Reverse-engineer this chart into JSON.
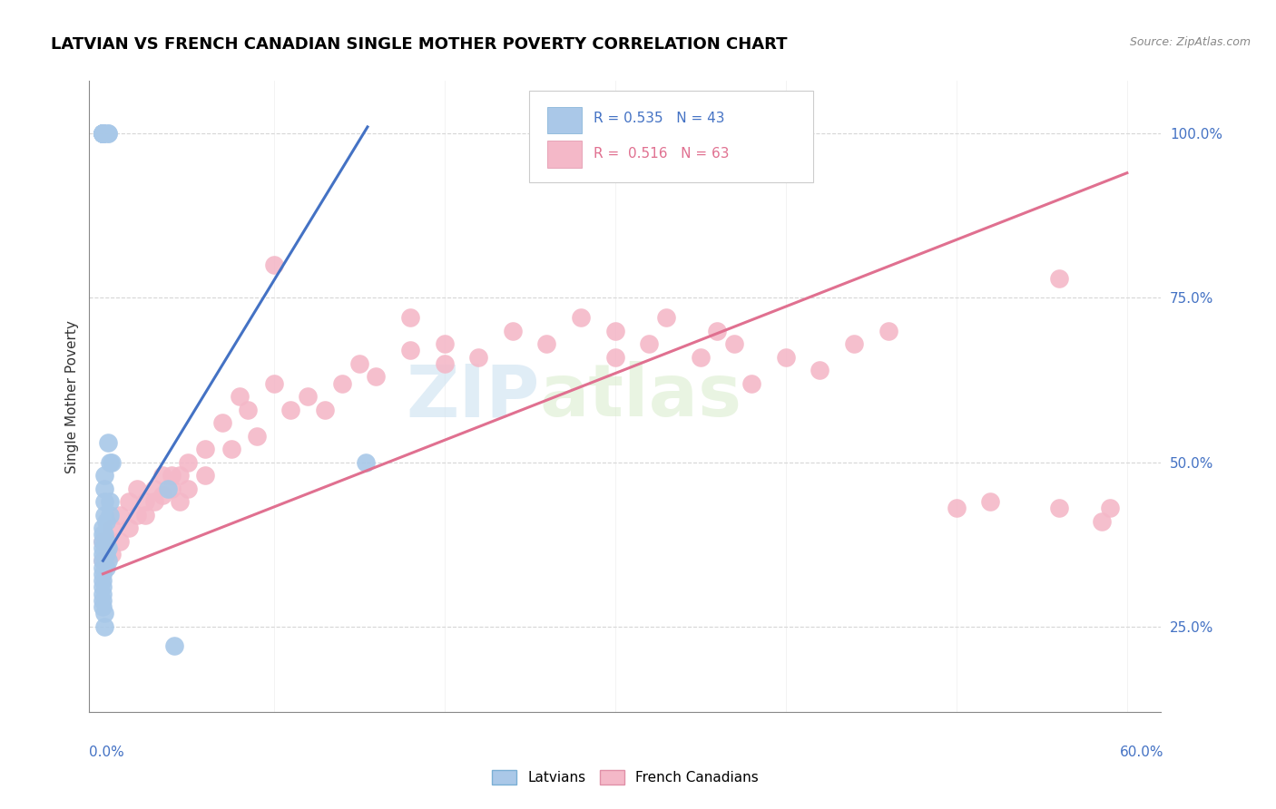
{
  "title": "LATVIAN VS FRENCH CANADIAN SINGLE MOTHER POVERTY CORRELATION CHART",
  "source": "Source: ZipAtlas.com",
  "ylabel": "Single Mother Poverty",
  "latvian_color": "#a8c8e8",
  "french_color": "#f4b8c8",
  "latvian_line_color": "#4472c4",
  "french_line_color": "#e07090",
  "latvian_R": 0.535,
  "latvian_N": 43,
  "french_R": 0.516,
  "french_N": 63,
  "watermark_zip": "ZIP",
  "watermark_atlas": "atlas",
  "xlim": [
    -0.008,
    0.62
  ],
  "ylim": [
    0.12,
    1.08
  ],
  "ytick_positions": [
    0.25,
    0.5,
    0.75,
    1.0
  ],
  "ytick_labels": [
    "25.0%",
    "50.0%",
    "75.0%",
    "100.0%"
  ],
  "blue_line": [
    [
      0.0,
      0.35
    ],
    [
      0.155,
      1.01
    ]
  ],
  "pink_line": [
    [
      0.0,
      0.33
    ],
    [
      0.6,
      0.94
    ]
  ],
  "latvian_x": [
    0.0,
    0.0,
    0.0,
    0.0,
    0.0,
    0.0,
    0.0,
    0.003,
    0.003,
    0.003,
    0.005,
    0.001,
    0.001,
    0.001,
    0.002,
    0.0,
    0.0,
    0.0,
    0.0,
    0.0,
    0.0,
    0.0,
    0.0,
    0.0,
    0.0,
    0.0,
    0.0,
    0.0,
    0.004,
    0.038,
    0.002,
    0.002,
    0.002,
    0.003,
    0.003,
    0.004,
    0.004,
    0.154,
    0.001,
    0.042,
    0.001,
    0.001,
    0.001
  ],
  "latvian_y": [
    1.0,
    1.0,
    1.0,
    1.0,
    1.0,
    1.0,
    1.0,
    1.0,
    1.0,
    0.53,
    0.5,
    0.46,
    0.44,
    0.42,
    0.41,
    0.4,
    0.39,
    0.38,
    0.37,
    0.36,
    0.35,
    0.34,
    0.33,
    0.32,
    0.31,
    0.3,
    0.29,
    0.28,
    0.5,
    0.46,
    0.38,
    0.36,
    0.34,
    0.37,
    0.35,
    0.44,
    0.42,
    0.5,
    0.39,
    0.22,
    0.25,
    0.27,
    0.48
  ],
  "french_x": [
    0.0,
    0.0,
    0.005,
    0.005,
    0.01,
    0.01,
    0.015,
    0.015,
    0.02,
    0.02,
    0.025,
    0.025,
    0.03,
    0.03,
    0.035,
    0.035,
    0.04,
    0.04,
    0.045,
    0.045,
    0.05,
    0.05,
    0.06,
    0.06,
    0.07,
    0.075,
    0.08,
    0.085,
    0.09,
    0.1,
    0.1,
    0.11,
    0.12,
    0.13,
    0.14,
    0.15,
    0.16,
    0.18,
    0.18,
    0.2,
    0.2,
    0.22,
    0.24,
    0.26,
    0.28,
    0.3,
    0.3,
    0.32,
    0.33,
    0.35,
    0.36,
    0.37,
    0.38,
    0.4,
    0.42,
    0.44,
    0.46,
    0.5,
    0.52,
    0.56,
    0.56,
    0.585,
    0.59
  ],
  "french_y": [
    0.38,
    0.35,
    0.4,
    0.36,
    0.42,
    0.38,
    0.44,
    0.4,
    0.46,
    0.42,
    0.44,
    0.42,
    0.46,
    0.44,
    0.48,
    0.45,
    0.48,
    0.46,
    0.48,
    0.44,
    0.5,
    0.46,
    0.52,
    0.48,
    0.56,
    0.52,
    0.6,
    0.58,
    0.54,
    0.62,
    0.8,
    0.58,
    0.6,
    0.58,
    0.62,
    0.65,
    0.63,
    0.72,
    0.67,
    0.68,
    0.65,
    0.66,
    0.7,
    0.68,
    0.72,
    0.7,
    0.66,
    0.68,
    0.72,
    0.66,
    0.7,
    0.68,
    0.62,
    0.66,
    0.64,
    0.68,
    0.7,
    0.43,
    0.44,
    0.43,
    0.78,
    0.41,
    0.43
  ]
}
